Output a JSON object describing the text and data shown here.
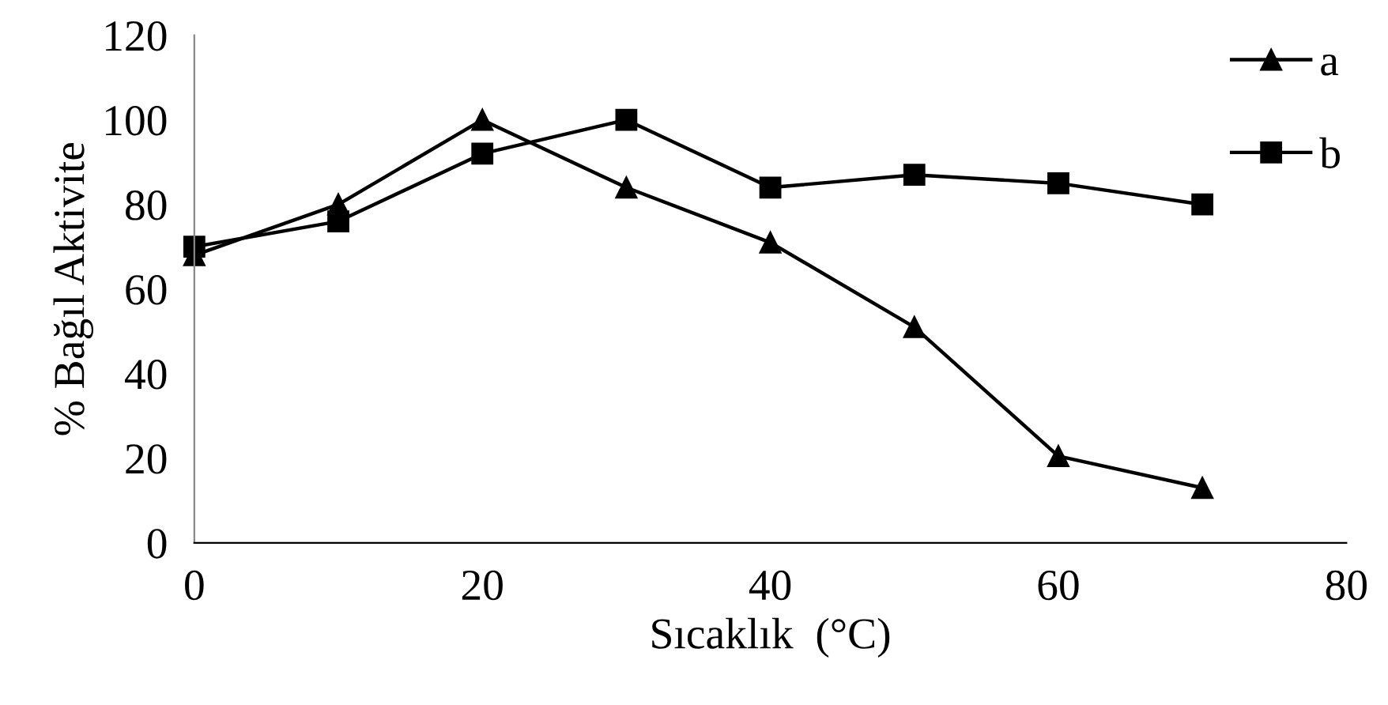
{
  "chart_data": {
    "type": "line",
    "xlabel": "Sıcaklık  (°C)",
    "ylabel": "% Bağıl Aktivite",
    "x": [
      0,
      10,
      20,
      30,
      40,
      50,
      60,
      70
    ],
    "series": [
      {
        "name": "a",
        "color": "#000000",
        "marker": "triangle",
        "values": [
          68,
          80,
          100,
          84,
          71,
          51,
          20.5,
          13
        ]
      },
      {
        "name": "b",
        "color": "#000000",
        "marker": "square",
        "values": [
          70,
          76,
          92,
          100,
          84,
          87,
          85,
          80
        ]
      }
    ],
    "xlim": [
      0,
      80
    ],
    "xticks": [
      0,
      20,
      40,
      60,
      80
    ],
    "ylim": [
      0,
      120
    ],
    "yticks": [
      0,
      20,
      40,
      60,
      80,
      100,
      120
    ],
    "grid": false,
    "legend": "top right",
    "line_style": "solid"
  }
}
